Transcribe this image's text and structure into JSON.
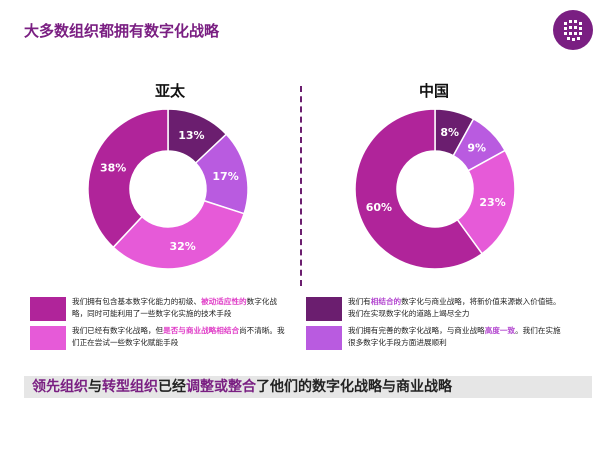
{
  "page": {
    "title": "大多数组织都拥有数字化战略"
  },
  "colors": {
    "dark_purple": "#6b1e6f",
    "magenta": "#b0249a",
    "pink": "#e65ad8",
    "violet": "#b95be0",
    "title": "#7a1f82"
  },
  "chart_data": [
    {
      "type": "pie",
      "title": "亚太",
      "donut": true,
      "slices": [
        {
          "value": 13,
          "label": "13%",
          "color": "#6b1e6f"
        },
        {
          "value": 17,
          "label": "17%",
          "color": "#b95be0"
        },
        {
          "value": 32,
          "label": "32%",
          "color": "#e65ad8"
        },
        {
          "value": 38,
          "label": "38%",
          "color": "#b0249a"
        }
      ]
    },
    {
      "type": "pie",
      "title": "中国",
      "donut": true,
      "slices": [
        {
          "value": 8,
          "label": "8%",
          "color": "#6b1e6f"
        },
        {
          "value": 9,
          "label": "9%",
          "color": "#b95be0"
        },
        {
          "value": 23,
          "label": "23%",
          "color": "#e65ad8"
        },
        {
          "value": 60,
          "label": "60%",
          "color": "#b0249a"
        }
      ]
    }
  ],
  "legend": [
    {
      "color": "#b0249a",
      "segments": [
        {
          "text": "我们拥有包含基本数字化能力的初级、",
          "style": ""
        },
        {
          "text": "被动适应性的",
          "style": "c-pink c-bold"
        },
        {
          "text": "数字化战略，同时可能利用了一些数字化实施的技术手段",
          "style": ""
        }
      ]
    },
    {
      "color": "#e65ad8",
      "segments": [
        {
          "text": "我们已经有数字化战略，但",
          "style": ""
        },
        {
          "text": "是否与商业战略相结合",
          "style": "c-pink c-bold"
        },
        {
          "text": "尚不清晰。我们正在尝试一些数字化赋能手段",
          "style": ""
        }
      ]
    },
    {
      "color": "#6b1e6f",
      "segments": [
        {
          "text": "我们有",
          "style": ""
        },
        {
          "text": "相结合的",
          "style": "c-purple c-bold"
        },
        {
          "text": "数字化与商业战略，将新价值来源嵌入价值链。我们在实现数字化的道路上竭尽全力",
          "style": ""
        }
      ]
    },
    {
      "color": "#b95be0",
      "segments": [
        {
          "text": "我们拥有完善的数字化战略，与商业战略",
          "style": ""
        },
        {
          "text": "高度一致",
          "style": "c-purple c-bold"
        },
        {
          "text": "。我们在实施很多数字化手段方面进展顺利",
          "style": ""
        }
      ]
    }
  ],
  "banner": {
    "segments": [
      {
        "text": "领先组织",
        "hl": true
      },
      {
        "text": "与",
        "hl": false
      },
      {
        "text": "转型组织",
        "hl": true
      },
      {
        "text": "已经",
        "hl": false
      },
      {
        "text": "调整或整合",
        "hl": true
      },
      {
        "text": "了他们的数字化战略与商业战略",
        "hl": false
      }
    ]
  }
}
